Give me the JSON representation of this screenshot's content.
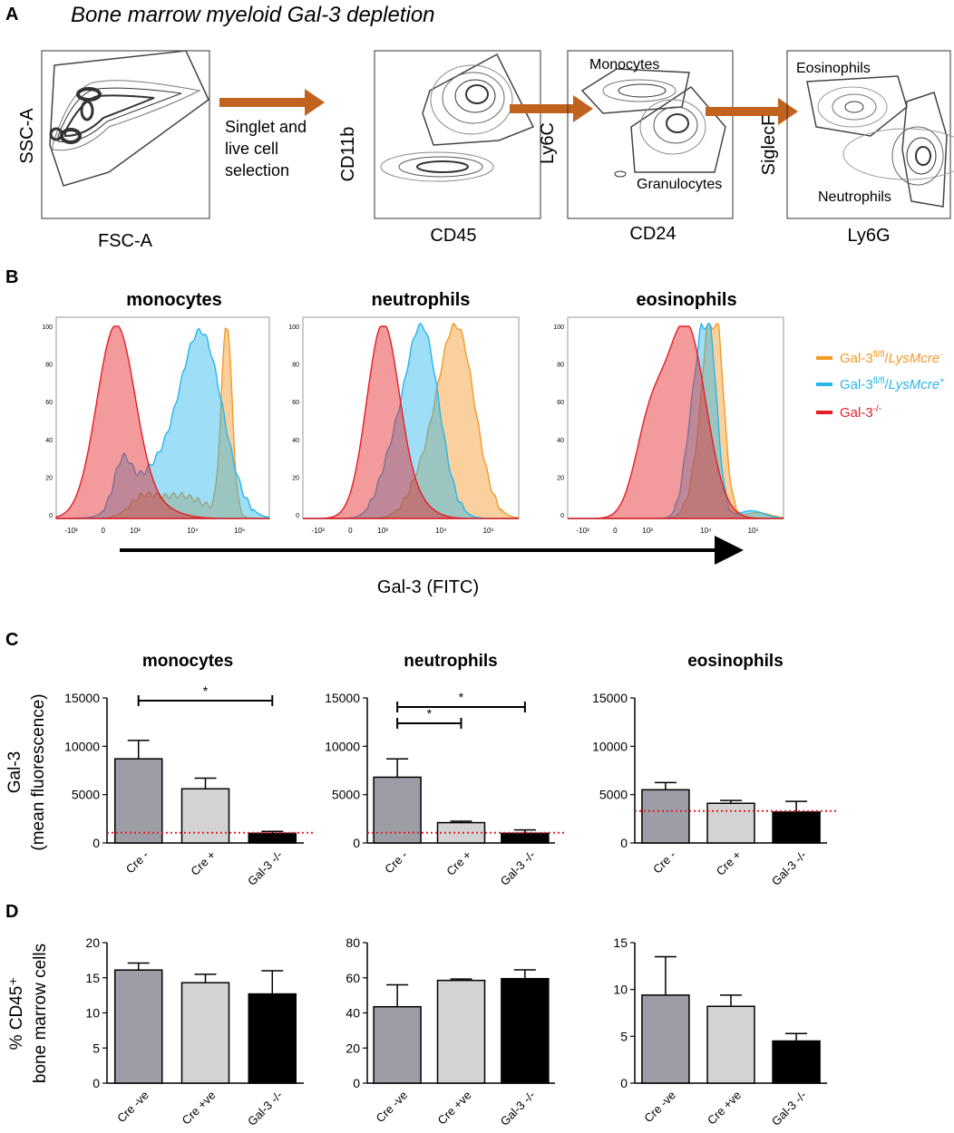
{
  "panels": {
    "A": "A",
    "B": "B",
    "C": "C",
    "D": "D"
  },
  "colors": {
    "cre_neg": "#F39A28",
    "cre_pos": "#29B6EA",
    "ko": "#E51E25",
    "arrow": "#C2621F",
    "bar_cre_neg": "#9D9DA6",
    "bar_cre_pos": "#D3D3D3",
    "bar_ko": "#000000",
    "dotted": "#E51E25"
  },
  "panelA": {
    "title": "Bone marrow myeloid Gal-3 depletion",
    "plot1": {
      "ylabel": "SSC-A",
      "xlabel": "FSC-A"
    },
    "arrow_text": [
      "Singlet and",
      "live cell",
      "selection"
    ],
    "plot2": {
      "ylabel": "CD11b",
      "xlabel": "CD45"
    },
    "plot3": {
      "ylabel": "Ly6C",
      "xlabel": "CD24",
      "gate_top": "Monocytes",
      "gate_bottom": "Granulocytes"
    },
    "plot4": {
      "ylabel": "SiglecF",
      "xlabel": "Ly6G",
      "gate_top": "Eosinophils",
      "gate_bottom": "Neutrophils"
    }
  },
  "panelB": {
    "titles": [
      "monocytes",
      "neutrophils",
      "eosinophils"
    ],
    "xlabel": "Gal-3 (FITC)",
    "yticks": [
      "0",
      "20",
      "40",
      "60",
      "80",
      "100"
    ],
    "xticks": [
      "-10³",
      "0",
      "10³",
      "10⁴",
      "10⁵"
    ],
    "legend": [
      {
        "base": "Gal-3",
        "sup": "fl/fl",
        "mid": "/",
        "ital": "LysMcre",
        "sup2": "-",
        "color": "#F39A28"
      },
      {
        "base": "Gal-3",
        "sup": "fl/fl",
        "mid": "/",
        "ital": "LysMcre",
        "sup2": "+",
        "color": "#29B6EA"
      },
      {
        "base": "Gal-3",
        "sup": "-/-",
        "mid": "",
        "ital": "",
        "sup2": "",
        "color": "#E51E25"
      }
    ]
  },
  "chart_data": [
    {
      "type": "bar",
      "panel": "C",
      "title": "monocytes",
      "ylabel": "Gal-3 (mean fluorescence)",
      "categories": [
        "Cre -",
        "Cre +",
        "Gal-3 -/-"
      ],
      "values": [
        8700,
        5600,
        1000
      ],
      "errors": [
        1900,
        1100,
        200
      ],
      "ylim": [
        0,
        15000
      ],
      "yticks": [
        "0",
        "5000",
        "10000",
        "15000"
      ],
      "reference_line": 1050,
      "significance": [
        {
          "from": 0,
          "to": 2,
          "label": "*"
        }
      ]
    },
    {
      "type": "bar",
      "panel": "C",
      "title": "neutrophils",
      "ylabel": "",
      "categories": [
        "Cre -",
        "Cre +",
        "Gal-3 -/-"
      ],
      "values": [
        6800,
        2100,
        1000
      ],
      "errors": [
        1900,
        150,
        350
      ],
      "ylim": [
        0,
        15000
      ],
      "yticks": [
        "0",
        "5000",
        "10000",
        "15000"
      ],
      "reference_line": 1050,
      "significance": [
        {
          "from": 0,
          "to": 1,
          "label": "*"
        },
        {
          "from": 0,
          "to": 2,
          "label": "*"
        }
      ]
    },
    {
      "type": "bar",
      "panel": "C",
      "title": "eosinophils",
      "ylabel": "",
      "categories": [
        "Cre -",
        "Cre +",
        "Gal-3 -/-"
      ],
      "values": [
        5500,
        4100,
        3200
      ],
      "errors": [
        750,
        300,
        1100
      ],
      "ylim": [
        0,
        15000
      ],
      "yticks": [
        "0",
        "5000",
        "10000",
        "15000"
      ],
      "reference_line": 3300,
      "significance": []
    },
    {
      "type": "bar",
      "panel": "D",
      "title": "",
      "ylabel": "% CD45⁺ bone marrow cells",
      "categories": [
        "Cre -ve",
        "Cre +ve",
        "Gal-3 -/-"
      ],
      "values": [
        16.1,
        14.3,
        12.7
      ],
      "errors": [
        1.0,
        1.2,
        3.3
      ],
      "ylim": [
        0,
        20
      ],
      "yticks": [
        "0",
        "5",
        "10",
        "15",
        "20"
      ],
      "reference_line": null,
      "significance": []
    },
    {
      "type": "bar",
      "panel": "D",
      "title": "",
      "ylabel": "",
      "categories": [
        "Cre -ve",
        "Cre +ve",
        "Gal-3 -/-"
      ],
      "values": [
        43.5,
        58.5,
        59.5
      ],
      "errors": [
        12.5,
        0.8,
        5.0
      ],
      "ylim": [
        0,
        80
      ],
      "yticks": [
        "0",
        "20",
        "40",
        "60",
        "80"
      ],
      "reference_line": null,
      "significance": []
    },
    {
      "type": "bar",
      "panel": "D",
      "title": "",
      "ylabel": "",
      "categories": [
        "Cre -ve",
        "Cre +ve",
        "Gal-3 -/-"
      ],
      "values": [
        9.4,
        8.2,
        4.5
      ],
      "errors": [
        4.1,
        1.2,
        0.8
      ],
      "ylim": [
        0,
        15
      ],
      "yticks": [
        "0",
        "5",
        "10",
        "15"
      ],
      "reference_line": null,
      "significance": []
    }
  ]
}
